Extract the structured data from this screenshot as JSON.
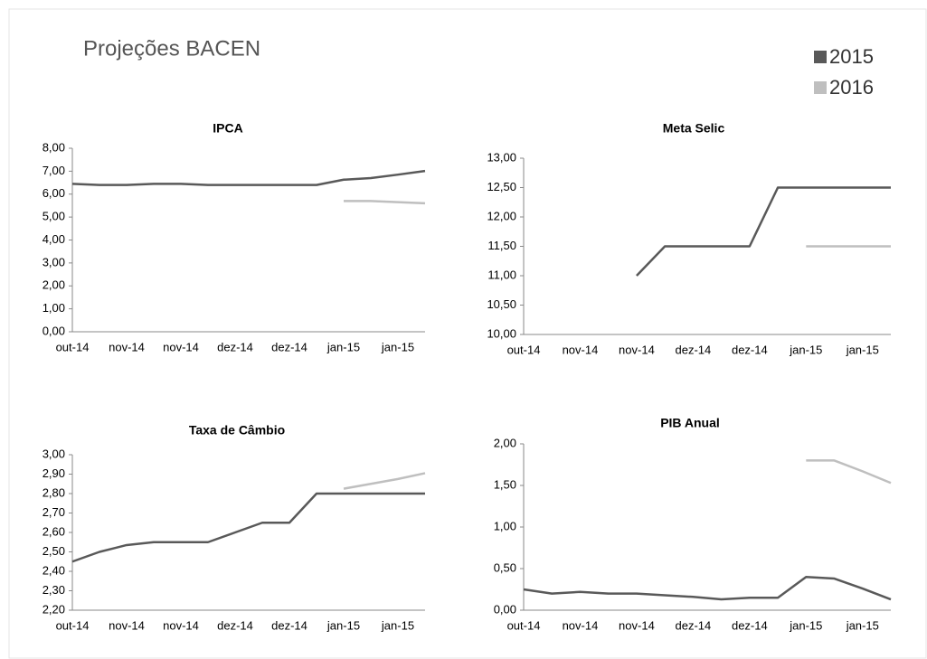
{
  "header": {
    "title": "Projeções BACEN"
  },
  "chart_data": [
    {
      "type": "line",
      "title": "IPCA",
      "categories": [
        "out-14",
        null,
        "nov-14",
        null,
        "nov-14",
        null,
        "dez-14",
        null,
        "dez-14",
        null,
        "jan-15",
        null,
        "jan-15",
        null
      ],
      "series": [
        {
          "name": "2015",
          "color": "#595959",
          "values": [
            6.45,
            6.4,
            6.4,
            6.45,
            6.45,
            6.4,
            6.4,
            6.4,
            6.4,
            6.4,
            6.63,
            6.7,
            6.85,
            7.01
          ]
        },
        {
          "name": "2016",
          "color": "#bfbfbf",
          "values": [
            null,
            null,
            null,
            null,
            null,
            null,
            null,
            null,
            null,
            null,
            5.7,
            5.7,
            5.65,
            5.6
          ]
        }
      ],
      "ylim": [
        0,
        8
      ],
      "yticks": [
        {
          "value": 0,
          "label": "0,00"
        },
        {
          "value": 1,
          "label": "1,00"
        },
        {
          "value": 2,
          "label": "2,00"
        },
        {
          "value": 3,
          "label": "3,00"
        },
        {
          "value": 4,
          "label": "4,00"
        },
        {
          "value": 5,
          "label": "5,00"
        },
        {
          "value": 6,
          "label": "6,00"
        },
        {
          "value": 7,
          "label": "7,00"
        },
        {
          "value": 8,
          "label": "8,00"
        }
      ]
    },
    {
      "type": "line",
      "title": "Meta Selic",
      "categories": [
        "out-14",
        null,
        "nov-14",
        null,
        "nov-14",
        null,
        "dez-14",
        null,
        "dez-14",
        null,
        "jan-15",
        null,
        "jan-15",
        null
      ],
      "series": [
        {
          "name": "2015",
          "color": "#595959",
          "values": [
            null,
            null,
            null,
            null,
            11.0,
            11.5,
            11.5,
            11.5,
            11.5,
            12.5,
            12.5,
            12.5,
            12.5,
            12.5
          ]
        },
        {
          "name": "2016",
          "color": "#bfbfbf",
          "values": [
            null,
            null,
            null,
            null,
            null,
            null,
            null,
            null,
            null,
            null,
            11.5,
            11.5,
            11.5,
            11.5
          ]
        }
      ],
      "ylim": [
        10,
        13
      ],
      "yticks": [
        {
          "value": 10,
          "label": "10,00"
        },
        {
          "value": 10.5,
          "label": "10,50"
        },
        {
          "value": 11,
          "label": "11,00"
        },
        {
          "value": 11.5,
          "label": "11,50"
        },
        {
          "value": 12,
          "label": "12,00"
        },
        {
          "value": 12.5,
          "label": "12,50"
        },
        {
          "value": 13,
          "label": "13,00"
        }
      ]
    },
    {
      "type": "line",
      "title": "Taxa de Câmbio",
      "categories": [
        "out-14",
        null,
        "nov-14",
        null,
        "nov-14",
        null,
        "dez-14",
        null,
        "dez-14",
        null,
        "jan-15",
        null,
        "jan-15",
        null
      ],
      "series": [
        {
          "name": "2015",
          "color": "#595959",
          "values": [
            2.45,
            2.5,
            2.535,
            2.55,
            2.55,
            2.55,
            2.6,
            2.65,
            2.65,
            2.8,
            2.8,
            2.8,
            2.8,
            2.8
          ]
        },
        {
          "name": "2016",
          "color": "#bfbfbf",
          "values": [
            null,
            null,
            null,
            null,
            null,
            null,
            null,
            null,
            null,
            null,
            2.825,
            2.85,
            2.875,
            2.905
          ]
        }
      ],
      "ylim": [
        2.2,
        3.0
      ],
      "yticks": [
        {
          "value": 2.2,
          "label": "2,20"
        },
        {
          "value": 2.3,
          "label": "2,30"
        },
        {
          "value": 2.4,
          "label": "2,40"
        },
        {
          "value": 2.5,
          "label": "2,50"
        },
        {
          "value": 2.6,
          "label": "2,60"
        },
        {
          "value": 2.7,
          "label": "2,70"
        },
        {
          "value": 2.8,
          "label": "2,80"
        },
        {
          "value": 2.9,
          "label": "2,90"
        },
        {
          "value": 3.0,
          "label": "3,00"
        }
      ]
    },
    {
      "type": "line",
      "title": "PIB Anual",
      "categories": [
        "out-14",
        null,
        "nov-14",
        null,
        "nov-14",
        null,
        "dez-14",
        null,
        "dez-14",
        null,
        "jan-15",
        null,
        "jan-15",
        null
      ],
      "series": [
        {
          "name": "2015",
          "color": "#595959",
          "values": [
            0.25,
            0.2,
            0.22,
            0.2,
            0.2,
            0.18,
            0.16,
            0.13,
            0.15,
            0.15,
            0.4,
            0.38,
            0.26,
            0.13
          ]
        },
        {
          "name": "2016",
          "color": "#bfbfbf",
          "values": [
            null,
            null,
            null,
            null,
            null,
            null,
            null,
            null,
            null,
            null,
            1.8,
            1.8,
            1.67,
            1.53
          ]
        }
      ],
      "ylim": [
        0,
        2
      ],
      "yticks": [
        {
          "value": 0,
          "label": "0,00"
        },
        {
          "value": 0.5,
          "label": "0,50"
        },
        {
          "value": 1,
          "label": "1,00"
        },
        {
          "value": 1.5,
          "label": "1,50"
        },
        {
          "value": 2,
          "label": "2,00"
        }
      ]
    }
  ]
}
